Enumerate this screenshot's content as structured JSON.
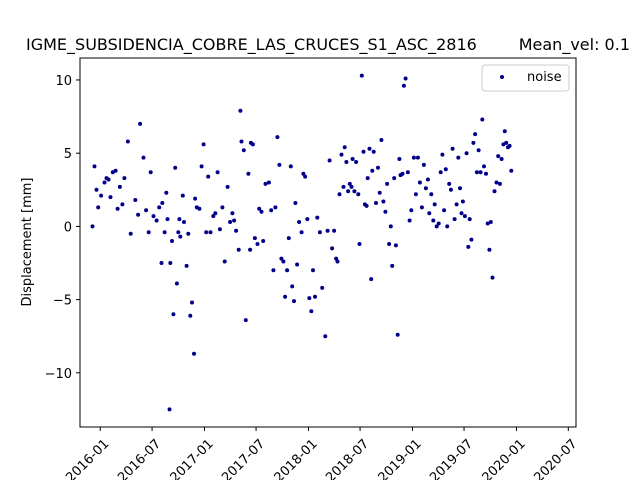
{
  "chart_data": {
    "type": "scatter",
    "title": "IGME_SUBSIDENCIA_COBRE_LAS_CRUCES_S1_ASC_2816",
    "subtitle": "Mean_vel: 0.1",
    "xlabel": "",
    "ylabel": "Displacement [mm]",
    "ylim": [
      -13.7,
      11.5
    ],
    "xlim": [
      "2015-10-22",
      "2020-07-28"
    ],
    "yticks": [
      -10,
      -5,
      0,
      5,
      10
    ],
    "xticks": [
      "2016-01",
      "2016-07",
      "2017-01",
      "2017-07",
      "2018-01",
      "2018-07",
      "2019-01",
      "2019-07",
      "2020-01",
      "2020-07"
    ],
    "grid": false,
    "legend_position": "top-right",
    "series": [
      {
        "name": "noise",
        "color": "#00008b",
        "marker": "dot",
        "points": [
          [
            "2015-12-05",
            0.0
          ],
          [
            "2015-12-12",
            4.1
          ],
          [
            "2015-12-19",
            2.5
          ],
          [
            "2015-12-25",
            1.3
          ],
          [
            "2016-01-04",
            2.1
          ],
          [
            "2016-01-16",
            3.0
          ],
          [
            "2016-01-23",
            3.3
          ],
          [
            "2016-01-30",
            3.2
          ],
          [
            "2016-02-06",
            2.0
          ],
          [
            "2016-02-14",
            3.7
          ],
          [
            "2016-02-24",
            3.8
          ],
          [
            "2016-03-02",
            1.2
          ],
          [
            "2016-03-10",
            2.7
          ],
          [
            "2016-03-19",
            1.5
          ],
          [
            "2016-03-26",
            3.3
          ],
          [
            "2016-04-07",
            5.8
          ],
          [
            "2016-04-17",
            -0.5
          ],
          [
            "2016-05-03",
            1.8
          ],
          [
            "2016-05-13",
            0.8
          ],
          [
            "2016-05-20",
            7.0
          ],
          [
            "2016-06-01",
            4.7
          ],
          [
            "2016-06-10",
            1.1
          ],
          [
            "2016-06-19",
            -0.4
          ],
          [
            "2016-06-26",
            3.7
          ],
          [
            "2016-07-06",
            0.7
          ],
          [
            "2016-07-17",
            0.4
          ],
          [
            "2016-07-26",
            1.3
          ],
          [
            "2016-08-03",
            -2.5
          ],
          [
            "2016-08-06",
            1.6
          ],
          [
            "2016-08-14",
            -0.4
          ],
          [
            "2016-08-20",
            2.3
          ],
          [
            "2016-08-24",
            0.5
          ],
          [
            "2016-08-31",
            -12.5
          ],
          [
            "2016-09-03",
            -2.5
          ],
          [
            "2016-09-09",
            -1.0
          ],
          [
            "2016-09-14",
            -6.0
          ],
          [
            "2016-09-20",
            4.0
          ],
          [
            "2016-09-26",
            -3.9
          ],
          [
            "2016-10-01",
            -0.4
          ],
          [
            "2016-10-05",
            0.5
          ],
          [
            "2016-10-08",
            -0.7
          ],
          [
            "2016-10-17",
            2.1
          ],
          [
            "2016-10-21",
            0.3
          ],
          [
            "2016-10-30",
            -2.7
          ],
          [
            "2016-11-05",
            -0.5
          ],
          [
            "2016-11-12",
            -6.1
          ],
          [
            "2016-11-18",
            -5.2
          ],
          [
            "2016-11-25",
            -8.7
          ],
          [
            "2016-11-29",
            1.9
          ],
          [
            "2016-12-05",
            1.3
          ],
          [
            "2016-12-14",
            1.2
          ],
          [
            "2016-12-22",
            4.1
          ],
          [
            "2016-12-29",
            5.6
          ],
          [
            "2017-01-07",
            -0.4
          ],
          [
            "2017-01-14",
            3.4
          ],
          [
            "2017-01-22",
            -0.4
          ],
          [
            "2017-02-01",
            0.7
          ],
          [
            "2017-02-08",
            0.9
          ],
          [
            "2017-02-16",
            3.7
          ],
          [
            "2017-02-24",
            -0.2
          ],
          [
            "2017-03-05",
            1.3
          ],
          [
            "2017-03-13",
            -2.4
          ],
          [
            "2017-03-23",
            2.7
          ],
          [
            "2017-04-01",
            0.3
          ],
          [
            "2017-04-09",
            0.9
          ],
          [
            "2017-04-15",
            0.4
          ],
          [
            "2017-04-22",
            -0.3
          ],
          [
            "2017-05-01",
            -1.6
          ],
          [
            "2017-05-07",
            7.9
          ],
          [
            "2017-05-11",
            5.8
          ],
          [
            "2017-05-19",
            5.2
          ],
          [
            "2017-05-26",
            -6.4
          ],
          [
            "2017-06-04",
            3.6
          ],
          [
            "2017-06-10",
            -1.6
          ],
          [
            "2017-06-13",
            5.7
          ],
          [
            "2017-06-20",
            5.6
          ],
          [
            "2017-06-27",
            -0.8
          ],
          [
            "2017-07-06",
            -1.2
          ],
          [
            "2017-07-12",
            1.2
          ],
          [
            "2017-07-20",
            1.0
          ],
          [
            "2017-07-26",
            -1.0
          ],
          [
            "2017-08-03",
            2.9
          ],
          [
            "2017-08-15",
            3.0
          ],
          [
            "2017-08-23",
            1.1
          ],
          [
            "2017-08-31",
            -3.0
          ],
          [
            "2017-09-07",
            1.3
          ],
          [
            "2017-09-14",
            6.1
          ],
          [
            "2017-09-21",
            4.2
          ],
          [
            "2017-09-28",
            -2.2
          ],
          [
            "2017-10-05",
            -2.4
          ],
          [
            "2017-10-11",
            -4.8
          ],
          [
            "2017-10-18",
            -3.0
          ],
          [
            "2017-10-24",
            -0.8
          ],
          [
            "2017-10-31",
            4.1
          ],
          [
            "2017-11-05",
            -4.1
          ],
          [
            "2017-11-11",
            -5.1
          ],
          [
            "2017-11-16",
            1.6
          ],
          [
            "2017-11-22",
            -2.6
          ],
          [
            "2017-11-29",
            0.3
          ],
          [
            "2017-12-08",
            -0.4
          ],
          [
            "2017-12-14",
            3.6
          ],
          [
            "2017-12-20",
            3.4
          ],
          [
            "2017-12-28",
            0.5
          ],
          [
            "2018-01-04",
            -4.9
          ],
          [
            "2018-01-11",
            -5.8
          ],
          [
            "2018-01-17",
            -3.0
          ],
          [
            "2018-01-24",
            -4.8
          ],
          [
            "2018-02-01",
            0.6
          ],
          [
            "2018-02-10",
            -0.4
          ],
          [
            "2018-02-18",
            -4.2
          ],
          [
            "2018-03-01",
            -7.5
          ],
          [
            "2018-03-09",
            -0.3
          ],
          [
            "2018-03-16",
            4.5
          ],
          [
            "2018-03-25",
            -1.5
          ],
          [
            "2018-04-01",
            -0.3
          ],
          [
            "2018-04-08",
            -2.2
          ],
          [
            "2018-04-13",
            -2.4
          ],
          [
            "2018-04-20",
            2.2
          ],
          [
            "2018-04-27",
            4.9
          ],
          [
            "2018-05-04",
            2.7
          ],
          [
            "2018-05-08",
            5.4
          ],
          [
            "2018-05-14",
            4.4
          ],
          [
            "2018-05-20",
            2.4
          ],
          [
            "2018-05-26",
            2.9
          ],
          [
            "2018-06-01",
            2.7
          ],
          [
            "2018-06-05",
            4.6
          ],
          [
            "2018-06-11",
            2.4
          ],
          [
            "2018-06-17",
            4.4
          ],
          [
            "2018-06-25",
            2.2
          ],
          [
            "2018-06-29",
            -1.2
          ],
          [
            "2018-07-07",
            10.3
          ],
          [
            "2018-07-13",
            5.1
          ],
          [
            "2018-07-18",
            1.5
          ],
          [
            "2018-07-24",
            1.4
          ],
          [
            "2018-07-28",
            3.3
          ],
          [
            "2018-08-03",
            5.3
          ],
          [
            "2018-08-09",
            -3.6
          ],
          [
            "2018-08-13",
            3.8
          ],
          [
            "2018-08-18",
            5.1
          ],
          [
            "2018-08-26",
            1.6
          ],
          [
            "2018-09-02",
            4.0
          ],
          [
            "2018-09-08",
            2.3
          ],
          [
            "2018-09-14",
            5.9
          ],
          [
            "2018-09-21",
            1.7
          ],
          [
            "2018-09-28",
            1.0
          ],
          [
            "2018-10-04",
            2.9
          ],
          [
            "2018-10-11",
            -1.2
          ],
          [
            "2018-10-17",
            0.0
          ],
          [
            "2018-10-22",
            -2.7
          ],
          [
            "2018-10-29",
            3.3
          ],
          [
            "2018-11-04",
            -1.3
          ],
          [
            "2018-11-10",
            -7.4
          ],
          [
            "2018-11-16",
            4.6
          ],
          [
            "2018-11-20",
            3.5
          ],
          [
            "2018-11-27",
            3.6
          ],
          [
            "2018-12-02",
            9.6
          ],
          [
            "2018-12-08",
            10.1
          ],
          [
            "2018-12-16",
            3.7
          ],
          [
            "2018-12-22",
            0.4
          ],
          [
            "2018-12-28",
            1.1
          ],
          [
            "2019-01-06",
            4.7
          ],
          [
            "2019-01-13",
            2.2
          ],
          [
            "2019-01-20",
            4.7
          ],
          [
            "2019-01-27",
            3.0
          ],
          [
            "2019-02-03",
            1.3
          ],
          [
            "2019-02-10",
            4.2
          ],
          [
            "2019-02-17",
            2.6
          ],
          [
            "2019-02-24",
            3.2
          ],
          [
            "2019-03-01",
            0.9
          ],
          [
            "2019-03-08",
            2.2
          ],
          [
            "2019-03-15",
            0.4
          ],
          [
            "2019-03-20",
            1.5
          ],
          [
            "2019-03-27",
            0.0
          ],
          [
            "2019-04-03",
            0.2
          ],
          [
            "2019-04-10",
            3.7
          ],
          [
            "2019-04-16",
            4.9
          ],
          [
            "2019-04-22",
            1.1
          ],
          [
            "2019-04-28",
            3.9
          ],
          [
            "2019-05-03",
            0.0
          ],
          [
            "2019-05-10",
            2.9
          ],
          [
            "2019-05-16",
            2.5
          ],
          [
            "2019-05-22",
            5.3
          ],
          [
            "2019-05-29",
            0.5
          ],
          [
            "2019-06-05",
            1.5
          ],
          [
            "2019-06-11",
            4.7
          ],
          [
            "2019-06-17",
            2.6
          ],
          [
            "2019-06-22",
            0.9
          ],
          [
            "2019-06-27",
            1.7
          ],
          [
            "2019-07-04",
            0.7
          ],
          [
            "2019-07-10",
            5.0
          ],
          [
            "2019-07-16",
            -1.4
          ],
          [
            "2019-07-21",
            0.5
          ],
          [
            "2019-07-27",
            -0.9
          ],
          [
            "2019-08-03",
            5.7
          ],
          [
            "2019-08-09",
            6.3
          ],
          [
            "2019-08-15",
            3.7
          ],
          [
            "2019-08-21",
            5.2
          ],
          [
            "2019-08-28",
            3.7
          ],
          [
            "2019-09-03",
            7.3
          ],
          [
            "2019-09-09",
            4.1
          ],
          [
            "2019-09-16",
            3.6
          ],
          [
            "2019-09-22",
            0.2
          ],
          [
            "2019-09-28",
            -1.6
          ],
          [
            "2019-10-03",
            0.3
          ],
          [
            "2019-10-09",
            -3.5
          ],
          [
            "2019-10-16",
            2.4
          ],
          [
            "2019-10-23",
            3.0
          ],
          [
            "2019-10-29",
            4.8
          ],
          [
            "2019-11-04",
            2.9
          ],
          [
            "2019-11-10",
            4.6
          ],
          [
            "2019-11-16",
            5.6
          ],
          [
            "2019-11-21",
            6.5
          ],
          [
            "2019-11-26",
            5.7
          ],
          [
            "2019-12-02",
            5.4
          ],
          [
            "2019-12-08",
            5.5
          ],
          [
            "2019-12-14",
            3.8
          ]
        ]
      }
    ]
  }
}
